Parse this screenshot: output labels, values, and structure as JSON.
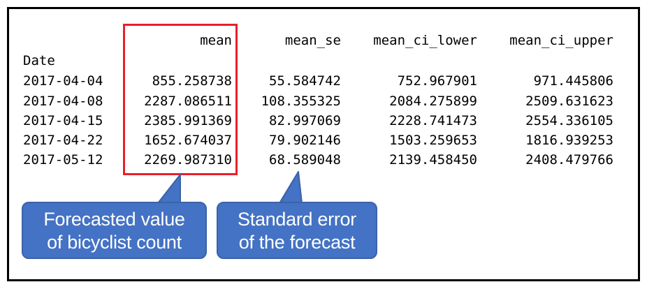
{
  "table": {
    "columns": {
      "mean": "mean",
      "mean_se": "mean_se",
      "mean_ci_lower": "mean_ci_lower",
      "mean_ci_upper": "mean_ci_upper"
    },
    "index_name": "Date",
    "rows": [
      {
        "date": "2017-04-04",
        "mean": "855.258738",
        "mean_se": "55.584742",
        "mean_ci_lower": "752.967901",
        "mean_ci_upper": "971.445806"
      },
      {
        "date": "2017-04-08",
        "mean": "2287.086511",
        "mean_se": "108.355325",
        "mean_ci_lower": "2084.275899",
        "mean_ci_upper": "2509.631623"
      },
      {
        "date": "2017-04-15",
        "mean": "2385.991369",
        "mean_se": "82.997069",
        "mean_ci_lower": "2228.741473",
        "mean_ci_upper": "2554.336105"
      },
      {
        "date": "2017-04-22",
        "mean": "1652.674037",
        "mean_se": "79.902146",
        "mean_ci_lower": "1503.259653",
        "mean_ci_upper": "1816.939253"
      },
      {
        "date": "2017-05-12",
        "mean": "2269.987310",
        "mean_se": "68.589048",
        "mean_ci_lower": "2139.458450",
        "mean_ci_upper": "2408.479766"
      }
    ]
  },
  "callouts": {
    "forecast": {
      "line1": "Forecasted value",
      "line2": "of bicyclist count"
    },
    "stderr": {
      "line1": "Standard error",
      "line2": "of the forecast"
    }
  },
  "colors": {
    "highlight": "#e8202a",
    "callout_fill": "#4472c4",
    "callout_text": "#ffffff",
    "frame": "#000000"
  }
}
